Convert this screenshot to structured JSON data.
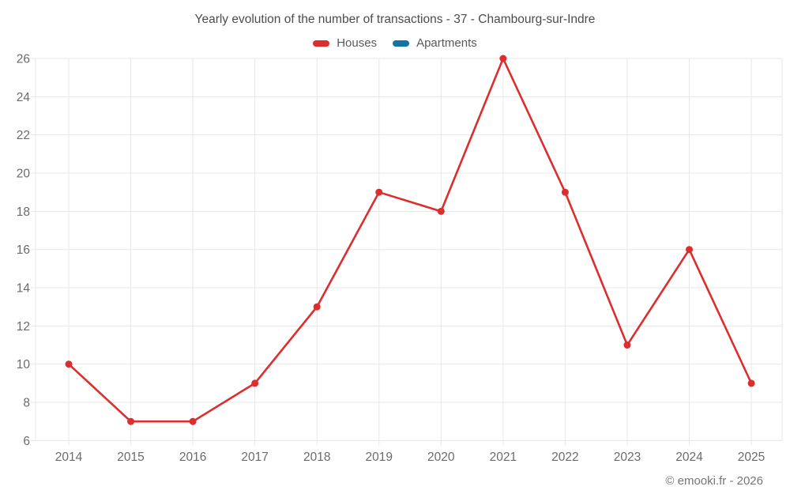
{
  "header": {
    "title": "Yearly evolution of the number of transactions - 37 - Chambourg-sur-Indre"
  },
  "footer": {
    "credit": "© emooki.fr - 2026"
  },
  "colors": {
    "houses": "#dc2e2e",
    "apartments": "#1473a3",
    "gridline": "#e7e7e7",
    "axis_label": "#6b6b6b"
  },
  "chart_data": {
    "type": "line",
    "title": "Yearly evolution of the number of transactions - 37 - Chambourg-sur-Indre",
    "categories": [
      "2014",
      "2015",
      "2016",
      "2017",
      "2018",
      "2019",
      "2020",
      "2021",
      "2022",
      "2023",
      "2024",
      "2025"
    ],
    "series": [
      {
        "name": "Houses",
        "color": "#dc2e2e",
        "values": [
          10,
          7,
          7,
          9,
          13,
          19,
          18,
          26,
          19,
          11,
          16,
          9
        ]
      },
      {
        "name": "Apartments",
        "color": "#1473a3",
        "values": []
      }
    ],
    "xlabel": "",
    "ylabel": "",
    "ylim": [
      6,
      26
    ],
    "ytick_step": 2,
    "grid": true,
    "legend_position": "top"
  }
}
